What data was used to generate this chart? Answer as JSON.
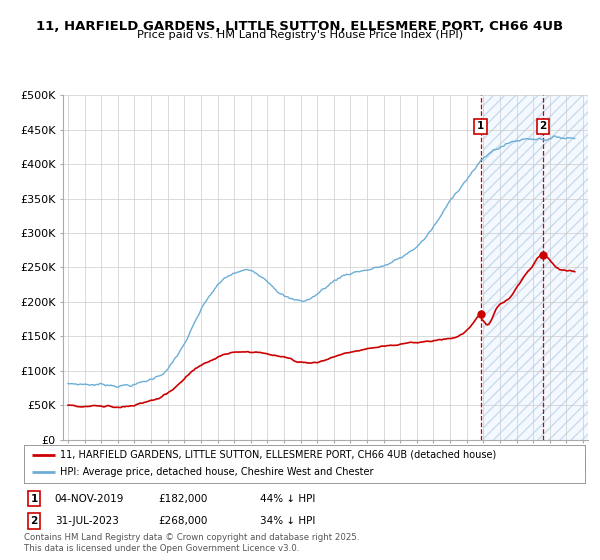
{
  "title_line1": "11, HARFIELD GARDENS, LITTLE SUTTON, ELLESMERE PORT, CH66 4UB",
  "title_line2": "Price paid vs. HM Land Registry's House Price Index (HPI)",
  "ylabel_ticks": [
    "£0",
    "£50K",
    "£100K",
    "£150K",
    "£200K",
    "£250K",
    "£300K",
    "£350K",
    "£400K",
    "£450K",
    "£500K"
  ],
  "ytick_values": [
    0,
    50000,
    100000,
    150000,
    200000,
    250000,
    300000,
    350000,
    400000,
    450000,
    500000
  ],
  "xlim_start": 1994.7,
  "xlim_end": 2026.3,
  "ylim": [
    0,
    500000
  ],
  "hpi_color": "#6baed6",
  "sale_color": "#cc0000",
  "marker1_x": 2019.84,
  "marker1_y": 182000,
  "marker1_label": "04-NOV-2019",
  "marker1_price": "£182,000",
  "marker1_hpi": "44% ↓ HPI",
  "marker2_x": 2023.58,
  "marker2_y": 268000,
  "marker2_label": "31-JUL-2023",
  "marker2_price": "£268,000",
  "marker2_hpi": "34% ↓ HPI",
  "legend_line1": "11, HARFIELD GARDENS, LITTLE SUTTON, ELLESMERE PORT, CH66 4UB (detached house)",
  "legend_line2": "HPI: Average price, detached house, Cheshire West and Chester",
  "footnote": "Contains HM Land Registry data © Crown copyright and database right 2025.\nThis data is licensed under the Open Government Licence v3.0.",
  "background_color": "#ffffff",
  "grid_color": "#cccccc",
  "shade_start": 2020.0,
  "shade_end": 2026.3,
  "shade_color": "#ddeeff"
}
